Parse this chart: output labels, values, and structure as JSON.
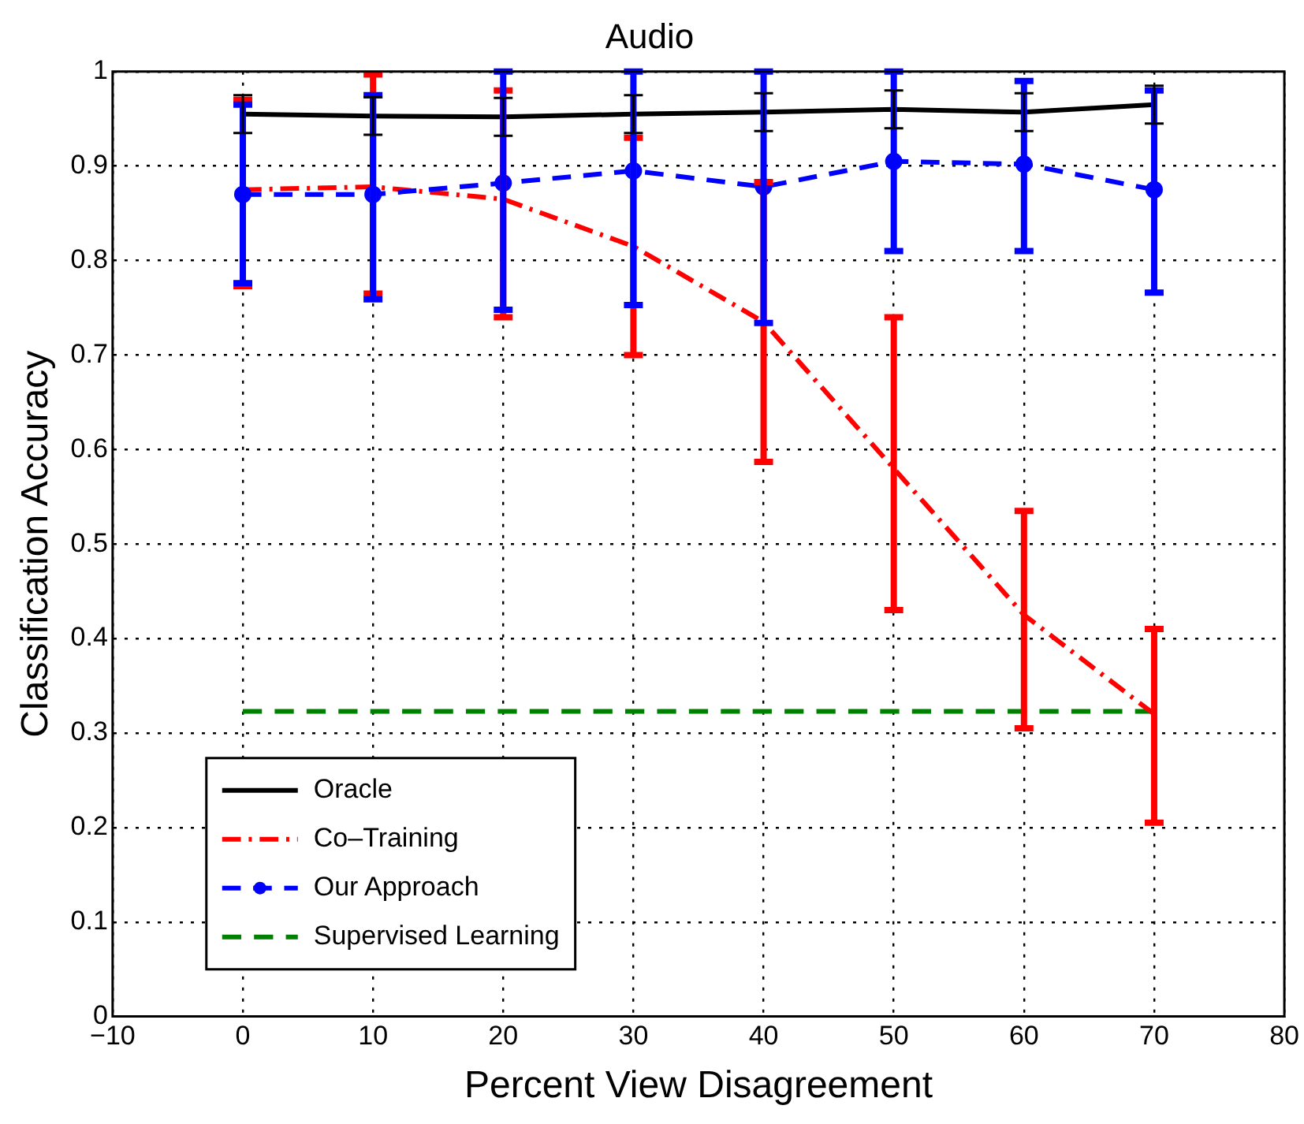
{
  "chart_data": {
    "type": "line",
    "title": "Audio",
    "xlabel": "Percent View Disagreement",
    "ylabel": "Classification Accuracy",
    "x": [
      0,
      10,
      20,
      30,
      40,
      50,
      60,
      70
    ],
    "series": [
      {
        "name": "Oracle",
        "color": "#000000",
        "line_style": "solid",
        "marker": "none",
        "values": [
          0.955,
          0.953,
          0.952,
          0.955,
          0.957,
          0.96,
          0.957,
          0.965
        ],
        "errors": [
          0.02,
          0.02,
          0.02,
          0.02,
          0.02,
          0.02,
          0.02,
          0.02
        ]
      },
      {
        "name": "Co–Training",
        "color": "#ff0000",
        "line_style": "dashdot",
        "marker": "none",
        "values": [
          0.875,
          0.878,
          0.865,
          0.815,
          0.735,
          0.58,
          0.425,
          0.32
        ],
        "errors": [
          [
            0.773,
            0.97
          ],
          [
            0.765,
            0.997
          ],
          [
            0.74,
            0.98
          ],
          [
            0.7,
            0.93
          ],
          [
            0.587,
            0.883
          ],
          [
            0.43,
            0.74
          ],
          [
            0.305,
            0.535
          ],
          [
            0.205,
            0.41
          ]
        ]
      },
      {
        "name": "Our Approach",
        "color": "#0000ff",
        "line_style": "dashed",
        "marker": "circle",
        "values": [
          0.87,
          0.87,
          0.882,
          0.895,
          0.878,
          0.905,
          0.902,
          0.875
        ],
        "errors": [
          [
            0.776,
            0.965
          ],
          [
            0.759,
            0.975
          ],
          [
            0.748,
            1.0
          ],
          [
            0.753,
            1.0
          ],
          [
            0.734,
            1.0
          ],
          [
            0.81,
            1.0
          ],
          [
            0.81,
            0.99
          ],
          [
            0.766,
            0.98
          ]
        ]
      },
      {
        "name": "Supervised Learning",
        "color": "#008000",
        "line_style": "dashed",
        "marker": "none",
        "values": [
          0.323,
          0.323,
          0.323,
          0.323,
          0.323,
          0.323,
          0.323,
          0.323
        ]
      }
    ],
    "xlim": [
      -10,
      80
    ],
    "xticks": [
      {
        "value": -10,
        "label": "−10"
      },
      0,
      10,
      20,
      30,
      40,
      50,
      60,
      70,
      80
    ],
    "ylim": [
      0,
      1
    ],
    "yticks": [
      0,
      0.1,
      0.2,
      0.3,
      0.4,
      0.5,
      0.6,
      0.7,
      0.8,
      0.9,
      1
    ],
    "grid": true,
    "legend": "bottom left"
  }
}
